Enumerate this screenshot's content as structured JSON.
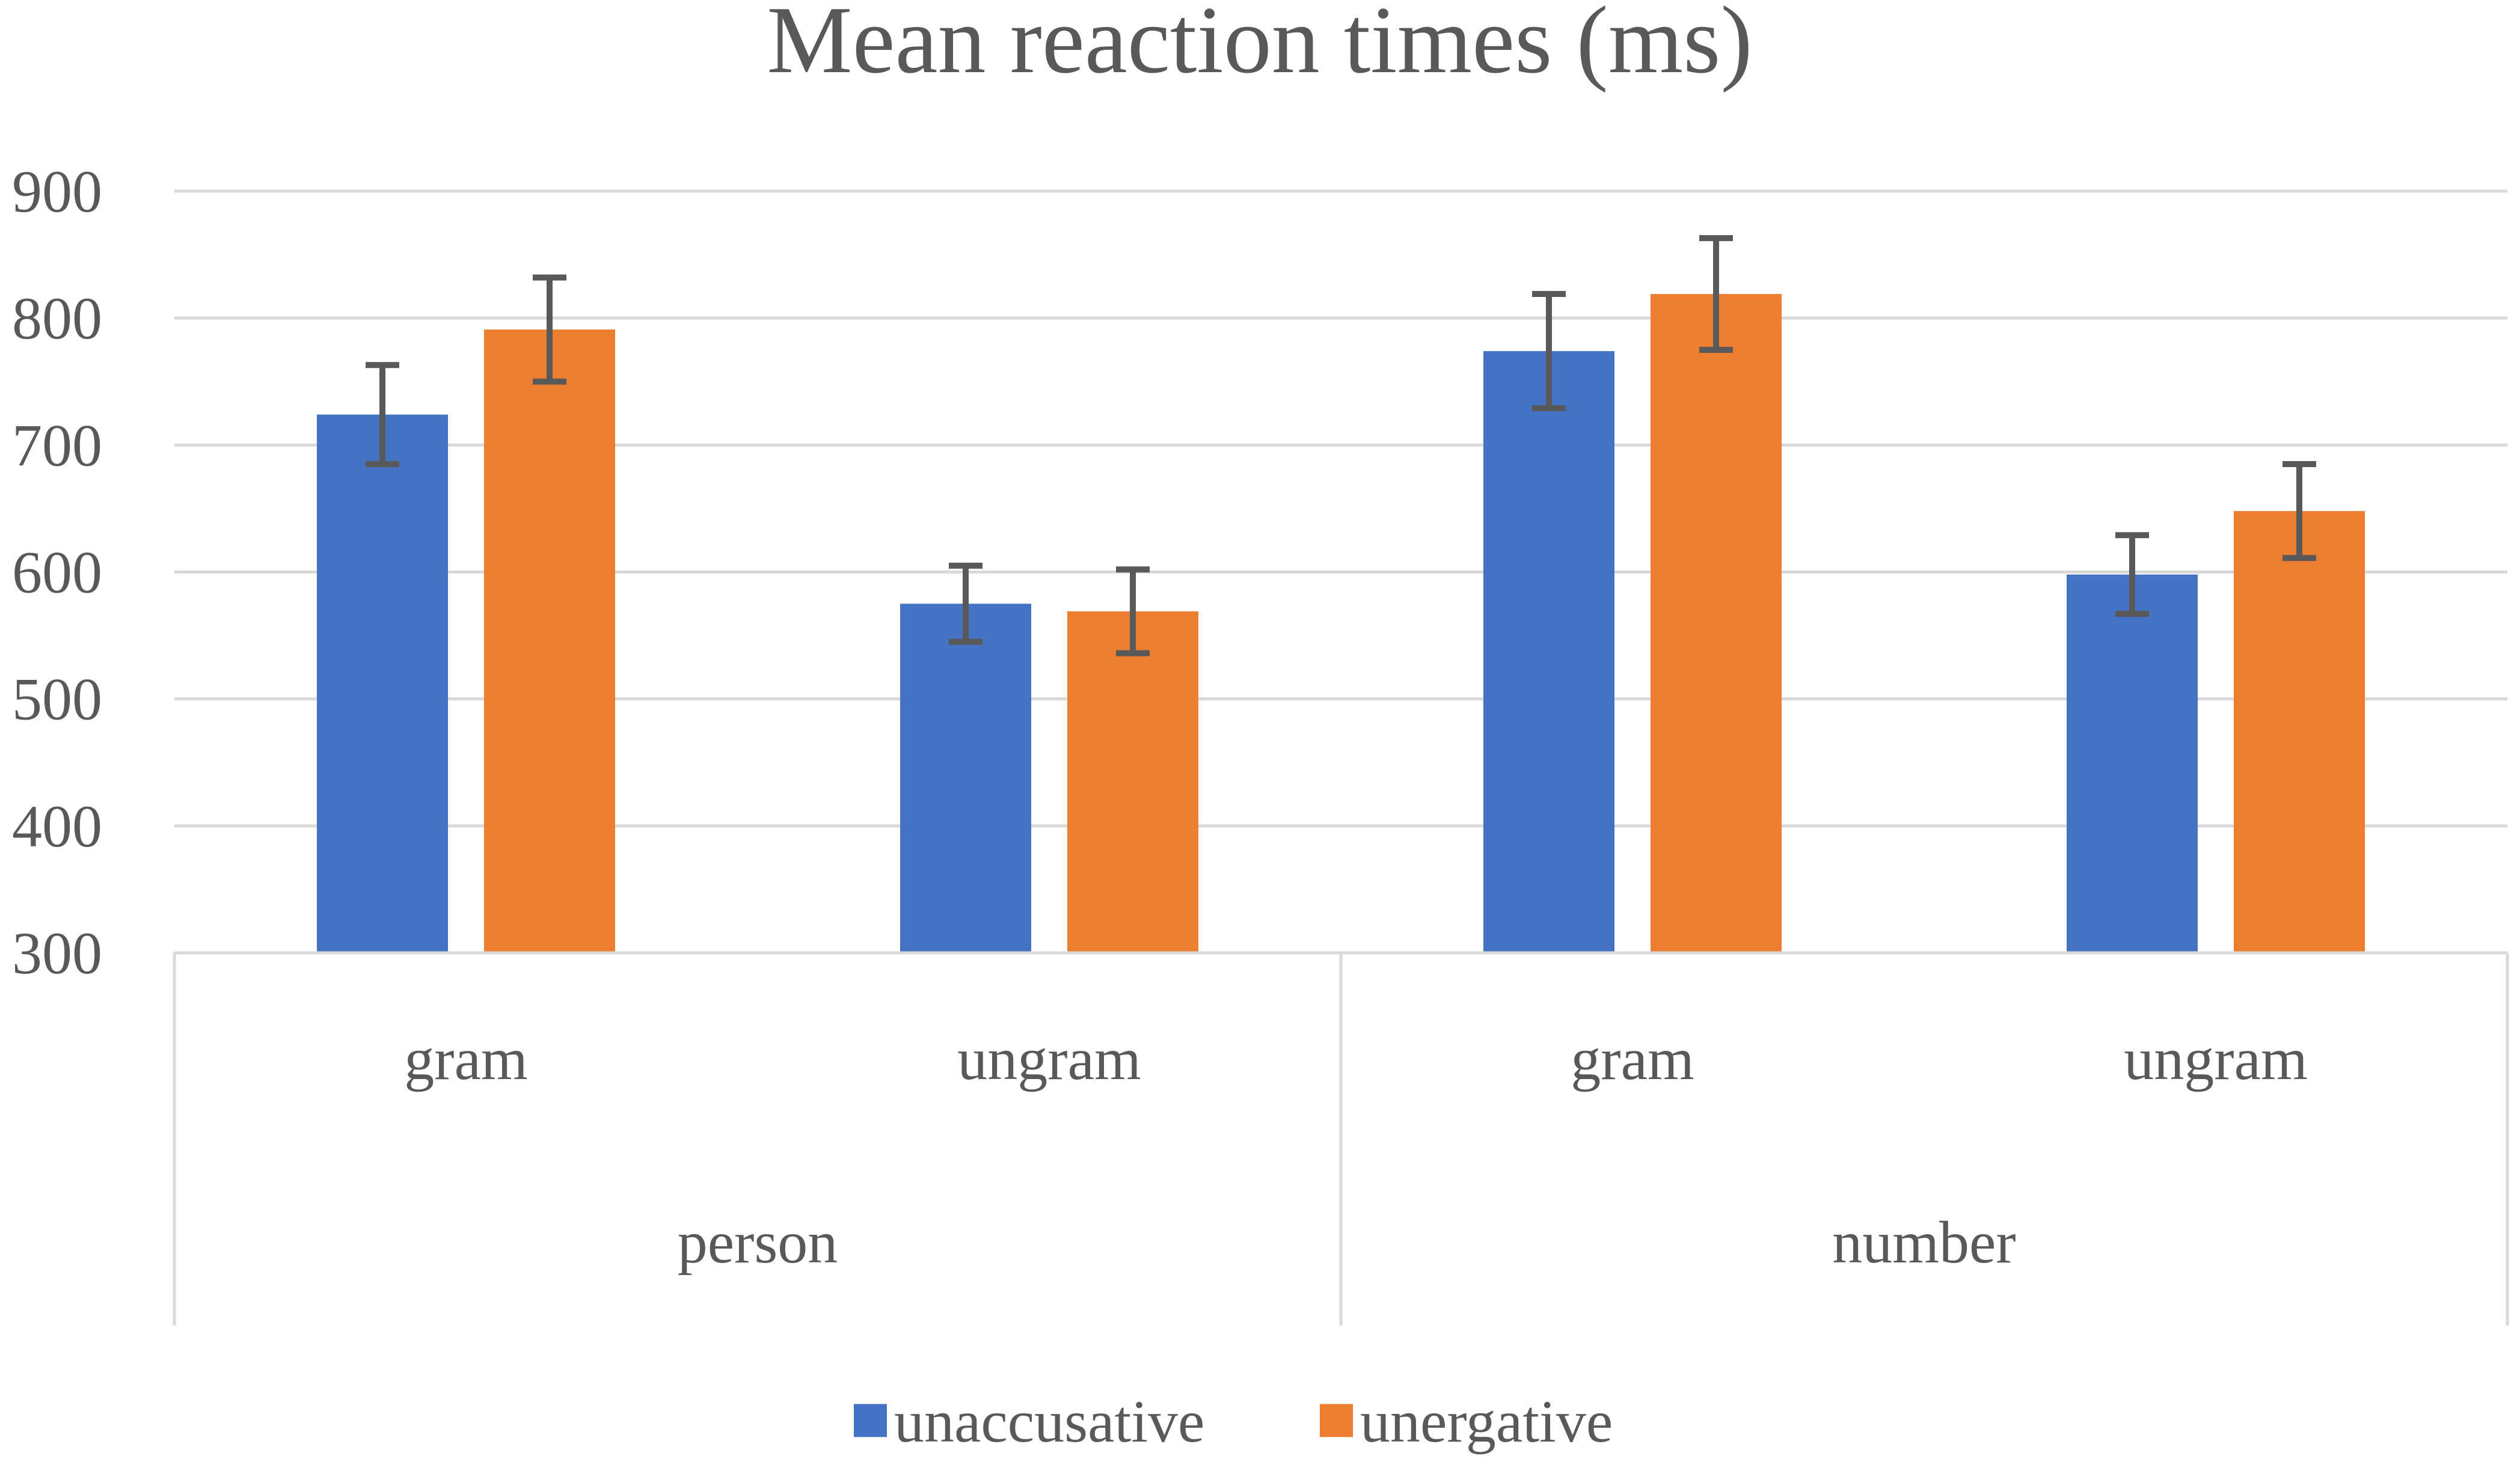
{
  "chart_data": {
    "type": "bar",
    "title": "Mean reaction times (ms)",
    "xlabel": "",
    "ylabel": "",
    "ylim": [
      300,
      900
    ],
    "yticks": [
      300,
      400,
      500,
      600,
      700,
      800,
      900
    ],
    "grid": true,
    "groups": [
      {
        "label": "person",
        "categories": [
          "gram",
          "ungram"
        ]
      },
      {
        "label": "number",
        "categories": [
          "gram",
          "ungram"
        ]
      }
    ],
    "series": [
      {
        "name": "unaccusative",
        "color": "#4472c4",
        "values": [
          724,
          575,
          774,
          598
        ],
        "errors": [
          39,
          30,
          45,
          31
        ]
      },
      {
        "name": "unergative",
        "color": "#ed7d31",
        "values": [
          791,
          569,
          819,
          648
        ],
        "errors": [
          41,
          33,
          44,
          37
        ]
      }
    ],
    "legend_position": "bottom"
  }
}
